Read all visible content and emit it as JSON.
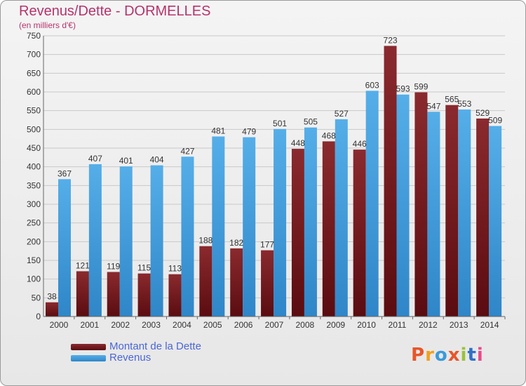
{
  "title": "Revenus/Dette - DORMELLES",
  "subtitle": "(en milliers d'€)",
  "logo": "Proxiti",
  "colors": {
    "dette": "#7a1a1f",
    "revenus": "#3f97d9",
    "title": "#b5336b",
    "legend_text": "#4a66d6"
  },
  "chart_data": {
    "type": "bar",
    "categories": [
      "2000",
      "2001",
      "2002",
      "2003",
      "2004",
      "2005",
      "2006",
      "2007",
      "2008",
      "2009",
      "2010",
      "2011",
      "2012",
      "2013",
      "2014"
    ],
    "series": [
      {
        "name": "Montant de la Dette",
        "values": [
          38,
          121,
          119,
          115,
          113,
          188,
          182,
          177,
          448,
          468,
          446,
          723,
          599,
          565,
          529
        ]
      },
      {
        "name": "Revenus",
        "values": [
          367,
          407,
          401,
          404,
          427,
          481,
          479,
          501,
          505,
          527,
          603,
          593,
          547,
          553,
          509
        ]
      }
    ],
    "ylim": [
      0,
      750
    ],
    "yticks": [
      0,
      50,
      100,
      150,
      200,
      250,
      300,
      350,
      400,
      450,
      500,
      550,
      600,
      650,
      700,
      750
    ],
    "grid": true,
    "legend": "bottom-left"
  }
}
